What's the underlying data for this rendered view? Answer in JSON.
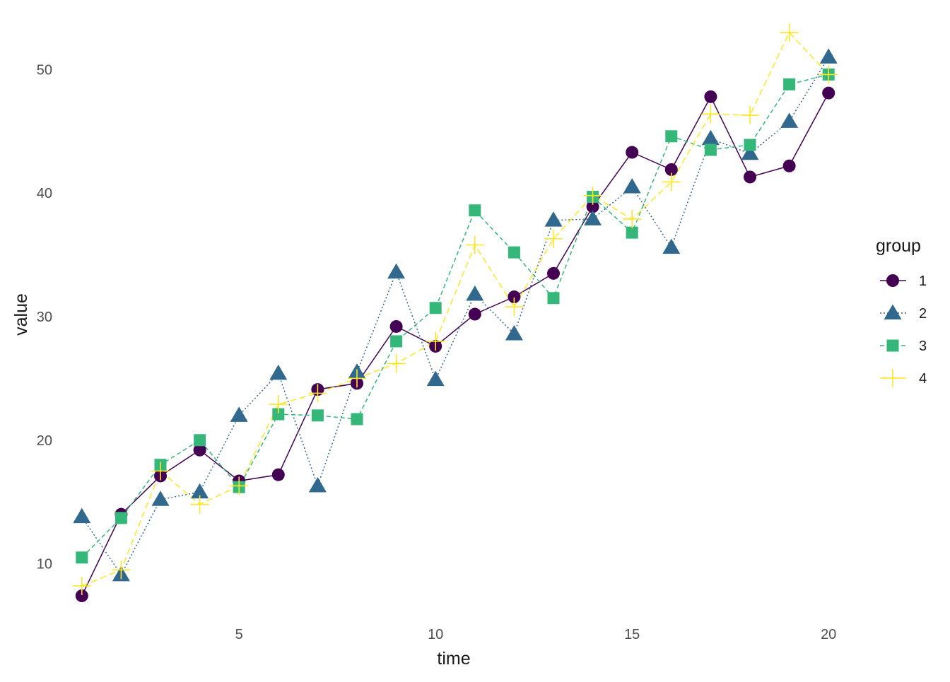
{
  "chart_data": {
    "type": "line",
    "title": "",
    "xlabel": "time",
    "ylabel": "value",
    "xlim": [
      0.5,
      20.5
    ],
    "ylim": [
      5.4,
      54.6
    ],
    "x_ticks": [
      5,
      10,
      15,
      20
    ],
    "y_ticks": [
      10,
      20,
      30,
      40,
      50
    ],
    "grid": false,
    "legend": {
      "title": "group",
      "position": "right"
    },
    "x": [
      1,
      2,
      3,
      4,
      5,
      6,
      7,
      8,
      9,
      10,
      11,
      12,
      13,
      14,
      15,
      16,
      17,
      18,
      19,
      20
    ],
    "series": [
      {
        "name": "1",
        "color": "#440154",
        "marker": "circle",
        "line": "solid",
        "values": [
          7.4,
          14.0,
          17.1,
          19.2,
          16.7,
          17.2,
          24.1,
          24.6,
          29.2,
          27.6,
          30.2,
          31.6,
          33.5,
          38.9,
          43.3,
          41.9,
          47.8,
          41.3,
          42.2,
          48.1
        ]
      },
      {
        "name": "2",
        "color": "#31688E",
        "marker": "triangle",
        "line": "dotted",
        "values": [
          13.8,
          9.1,
          15.2,
          15.8,
          22.0,
          25.4,
          16.3,
          25.5,
          33.6,
          24.9,
          31.8,
          28.6,
          37.8,
          37.9,
          40.5,
          35.6,
          44.4,
          43.2,
          45.8,
          51.0
        ]
      },
      {
        "name": "3",
        "color": "#35B779",
        "marker": "square",
        "line": "dashed",
        "values": [
          10.5,
          13.7,
          18.0,
          20.0,
          16.2,
          22.1,
          22.0,
          21.7,
          28.0,
          30.7,
          38.6,
          35.2,
          31.5,
          39.7,
          36.8,
          44.6,
          43.5,
          43.9,
          48.8,
          49.6
        ]
      },
      {
        "name": "4",
        "color": "#FDE725",
        "marker": "plus",
        "line": "longdash",
        "values": [
          8.2,
          9.5,
          17.5,
          14.8,
          16.3,
          22.9,
          23.8,
          25.0,
          26.2,
          28.0,
          35.8,
          30.8,
          36.3,
          39.8,
          37.9,
          40.9,
          46.4,
          46.3,
          53.0,
          49.6
        ]
      }
    ]
  }
}
